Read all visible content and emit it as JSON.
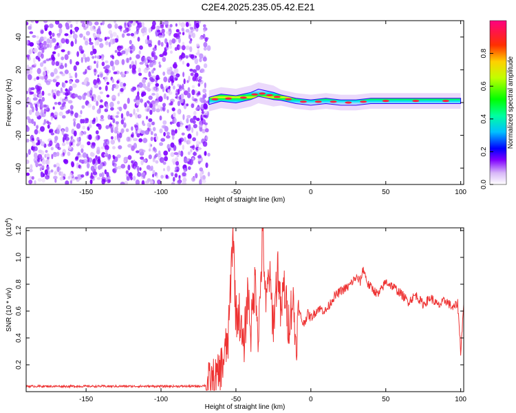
{
  "title": "C2E4.2025.235.05.42.E21",
  "chart_data": [
    {
      "type": "heatmap",
      "xlabel": "Height of straight line (km)",
      "ylabel": "Frequency (Hz)",
      "xlim": [
        -190,
        102
      ],
      "ylim": [
        -50,
        50
      ],
      "x_ticks": [
        -150,
        -100,
        -50,
        0,
        50,
        100
      ],
      "x_tick_labels": [
        "-150",
        "-100",
        "-50",
        "0",
        "50",
        "100"
      ],
      "y_ticks": [
        -40,
        -20,
        0,
        20,
        40
      ],
      "y_tick_labels": [
        "-40",
        "-20",
        "0",
        "20",
        "40"
      ],
      "colorbar": {
        "label": "Normalized spectral amplitude",
        "range": [
          0,
          1
        ],
        "ticks": [
          0.0,
          0.2,
          0.4,
          0.6,
          0.8
        ],
        "tick_labels": [
          "0.0",
          "0.2",
          "0.4",
          "0.6",
          "0.8"
        ]
      },
      "noise_region_x": [
        -190,
        -68
      ],
      "ridge": {
        "x": [
          -68,
          -60,
          -50,
          -40,
          -35,
          -30,
          -25,
          -20,
          -10,
          0,
          10,
          20,
          30,
          40,
          60,
          80,
          100
        ],
        "freq": [
          1,
          3,
          2,
          4,
          6,
          5,
          4,
          3,
          1,
          0,
          1,
          0,
          0,
          1,
          1,
          1,
          1
        ],
        "width": [
          4,
          4,
          4,
          4,
          4,
          4,
          4,
          3,
          3,
          3,
          3,
          3,
          3,
          3,
          3,
          3,
          3
        ]
      }
    },
    {
      "type": "line",
      "xlabel": "Height of straight line (km)",
      "ylabel": "SNR (10 * v/v)",
      "y_multiplier_label": "(x10",
      "y_multiplier_exp": "4",
      "y_multiplier_suffix": ")",
      "xlim": [
        -190,
        102
      ],
      "ylim": [
        0,
        1.22
      ],
      "x_ticks": [
        -150,
        -100,
        -50,
        0,
        50,
        100
      ],
      "x_tick_labels": [
        "-150",
        "-100",
        "-50",
        "0",
        "50",
        "100"
      ],
      "y_ticks": [
        0.2,
        0.4,
        0.6,
        0.8,
        1.0,
        1.2
      ],
      "y_tick_labels": [
        "0.2",
        "0.4",
        "0.6",
        "0.8",
        "1.0",
        "1.2"
      ],
      "series": [
        {
          "color": "#ee3333",
          "x": [
            -190,
            -150,
            -100,
            -75,
            -68,
            -62,
            -58,
            -55,
            -53,
            -52,
            -50,
            -48,
            -45,
            -42,
            -40,
            -37,
            -35,
            -33,
            -32,
            -30,
            -28,
            -25,
            -22,
            -20,
            -18,
            -15,
            -12,
            -10,
            -8,
            -5,
            -2,
            0,
            5,
            10,
            15,
            20,
            25,
            30,
            33,
            35,
            38,
            40,
            45,
            50,
            55,
            60,
            65,
            70,
            75,
            80,
            85,
            90,
            95,
            98,
            100,
            102
          ],
          "y": [
            0.04,
            0.04,
            0.04,
            0.04,
            0.05,
            0.1,
            0.25,
            0.4,
            0.95,
            1.22,
            0.55,
            0.6,
            0.3,
            0.75,
            0.45,
            0.85,
            0.4,
            0.95,
            1.2,
            0.6,
            0.9,
            0.5,
            0.95,
            0.55,
            0.8,
            0.5,
            0.7,
            0.35,
            0.6,
            0.5,
            0.58,
            0.55,
            0.62,
            0.6,
            0.7,
            0.75,
            0.78,
            0.85,
            0.82,
            0.92,
            0.8,
            0.78,
            0.72,
            0.82,
            0.78,
            0.73,
            0.67,
            0.72,
            0.65,
            0.7,
            0.64,
            0.68,
            0.62,
            0.66,
            0.3,
            0.65
          ]
        }
      ]
    }
  ]
}
